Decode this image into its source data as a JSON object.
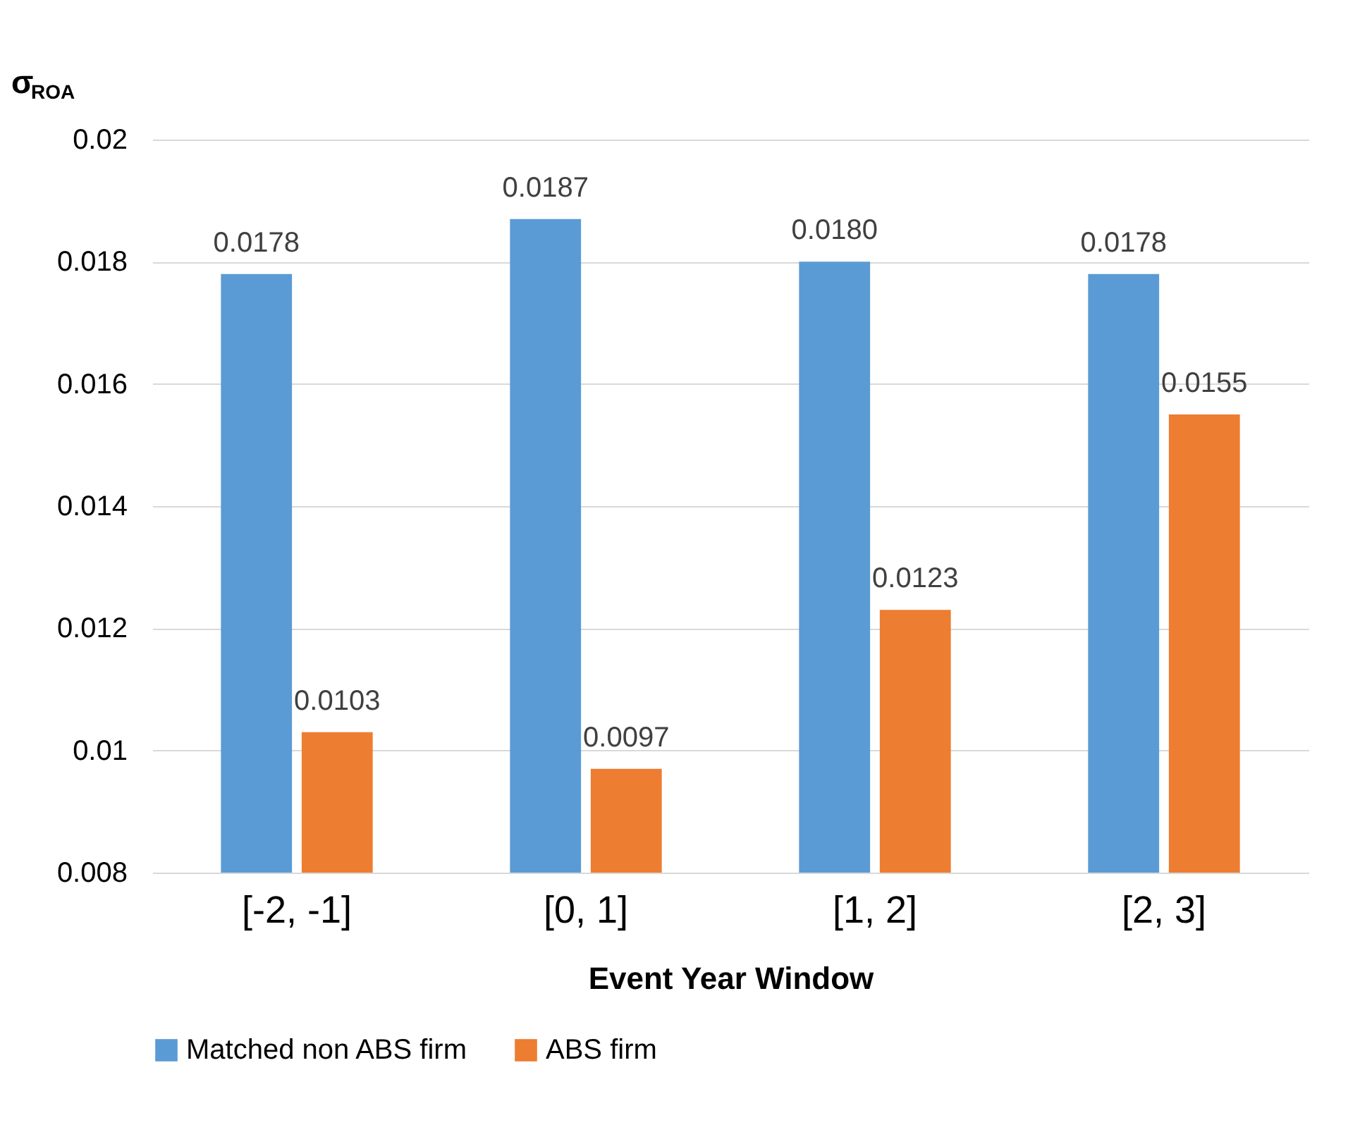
{
  "chart_data": {
    "type": "bar",
    "xlabel": "Event Year Window",
    "ylabel": "σ$_{ROA}$",
    "categories": [
      "[-2, -1]",
      "[0, 1]",
      "[1, 2]",
      "[2, 3]"
    ],
    "series": [
      {
        "name": "Matched non ABS firm",
        "color": "#5b9bd5",
        "values": [
          0.0178,
          0.0187,
          0.018,
          0.0178
        ],
        "value_labels": [
          "0.0178",
          "0.0187",
          "0.0180",
          "0.0178"
        ]
      },
      {
        "name": "ABS firm",
        "color": "#ed7d31",
        "values": [
          0.0103,
          0.0097,
          0.0123,
          0.0155
        ],
        "value_labels": [
          "0.0103",
          "0.0097",
          "0.0123",
          "0.0155"
        ]
      }
    ],
    "ylim": [
      0.008,
      0.02
    ],
    "yticks": [
      0.008,
      0.01,
      0.012,
      0.014,
      0.016,
      0.018,
      0.02
    ],
    "grid": "y",
    "legend": "bottom"
  }
}
